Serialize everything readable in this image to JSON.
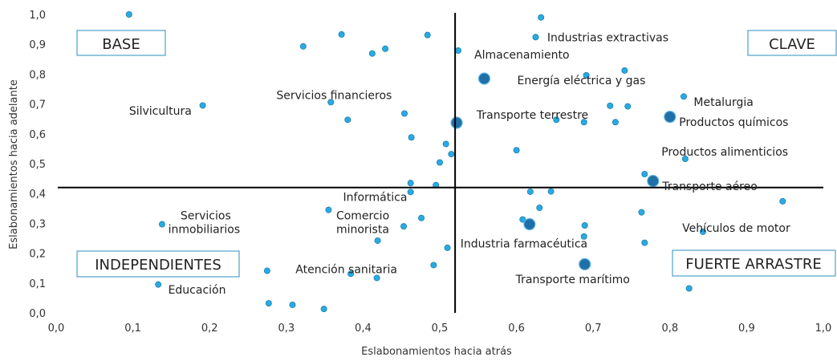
{
  "chart_data": {
    "type": "scatter",
    "xlabel": "Eslabonamientos hacia atrás",
    "ylabel": "Eslabonamientos hacia adelante",
    "xlim": [
      0.0,
      1.0
    ],
    "ylim": [
      0.0,
      1.0
    ],
    "x_ticks": [
      "0,0",
      "0,1",
      "0,2",
      "0,3",
      "0,4",
      "0,5",
      "0,6",
      "0,7",
      "0,8",
      "0,9",
      "1,0"
    ],
    "y_ticks": [
      "0,0",
      "0,1",
      "0,2",
      "0,3",
      "0,4",
      "0,5",
      "0,6",
      "0,7",
      "0,8",
      "0,9",
      "1,0"
    ],
    "grid": false,
    "reference_lines": {
      "x": 0.52,
      "y": 0.42
    },
    "quadrant_labels": [
      "BASE",
      "CLAVE",
      "INDEPENDIENTES",
      "FUERTE ARRASTRE"
    ],
    "colors": {
      "point": "#29abe2",
      "highlight": "#1f6fa8",
      "axis": "#000000",
      "box": "#2b8fc1"
    },
    "highlighted_points": [
      {
        "x": 0.558,
        "y": 0.785
      },
      {
        "x": 0.522,
        "y": 0.637
      },
      {
        "x": 0.8,
        "y": 0.657
      },
      {
        "x": 0.778,
        "y": 0.442
      },
      {
        "x": 0.617,
        "y": 0.297
      },
      {
        "x": 0.689,
        "y": 0.163
      }
    ],
    "points": [
      {
        "x": 0.095,
        "y": 1.0
      },
      {
        "x": 0.632,
        "y": 0.99
      },
      {
        "x": 0.372,
        "y": 0.933
      },
      {
        "x": 0.484,
        "y": 0.931
      },
      {
        "x": 0.625,
        "y": 0.924
      },
      {
        "x": 0.322,
        "y": 0.893
      },
      {
        "x": 0.429,
        "y": 0.885
      },
      {
        "x": 0.412,
        "y": 0.869
      },
      {
        "x": 0.524,
        "y": 0.879
      },
      {
        "x": 0.741,
        "y": 0.812
      },
      {
        "x": 0.691,
        "y": 0.796
      },
      {
        "x": 0.818,
        "y": 0.725
      },
      {
        "x": 0.191,
        "y": 0.695
      },
      {
        "x": 0.358,
        "y": 0.706
      },
      {
        "x": 0.722,
        "y": 0.694
      },
      {
        "x": 0.745,
        "y": 0.692
      },
      {
        "x": 0.454,
        "y": 0.668
      },
      {
        "x": 0.38,
        "y": 0.647
      },
      {
        "x": 0.652,
        "y": 0.647
      },
      {
        "x": 0.688,
        "y": 0.639
      },
      {
        "x": 0.729,
        "y": 0.639
      },
      {
        "x": 0.463,
        "y": 0.588
      },
      {
        "x": 0.508,
        "y": 0.566
      },
      {
        "x": 0.6,
        "y": 0.545
      },
      {
        "x": 0.515,
        "y": 0.532
      },
      {
        "x": 0.82,
        "y": 0.516
      },
      {
        "x": 0.5,
        "y": 0.504
      },
      {
        "x": 0.767,
        "y": 0.465
      },
      {
        "x": 0.462,
        "y": 0.435
      },
      {
        "x": 0.495,
        "y": 0.428
      },
      {
        "x": 0.462,
        "y": 0.405
      },
      {
        "x": 0.618,
        "y": 0.406
      },
      {
        "x": 0.645,
        "y": 0.407
      },
      {
        "x": 0.947,
        "y": 0.374
      },
      {
        "x": 0.63,
        "y": 0.352
      },
      {
        "x": 0.355,
        "y": 0.345
      },
      {
        "x": 0.763,
        "y": 0.337
      },
      {
        "x": 0.476,
        "y": 0.318
      },
      {
        "x": 0.608,
        "y": 0.313
      },
      {
        "x": 0.138,
        "y": 0.297
      },
      {
        "x": 0.689,
        "y": 0.293
      },
      {
        "x": 0.453,
        "y": 0.29
      },
      {
        "x": 0.843,
        "y": 0.272
      },
      {
        "x": 0.688,
        "y": 0.256
      },
      {
        "x": 0.419,
        "y": 0.242
      },
      {
        "x": 0.767,
        "y": 0.235
      },
      {
        "x": 0.51,
        "y": 0.218
      },
      {
        "x": 0.492,
        "y": 0.16
      },
      {
        "x": 0.275,
        "y": 0.141
      },
      {
        "x": 0.384,
        "y": 0.131
      },
      {
        "x": 0.418,
        "y": 0.117
      },
      {
        "x": 0.133,
        "y": 0.095
      },
      {
        "x": 0.825,
        "y": 0.082
      },
      {
        "x": 0.277,
        "y": 0.032
      },
      {
        "x": 0.308,
        "y": 0.027
      },
      {
        "x": 0.349,
        "y": 0.013
      }
    ],
    "annotations": [
      {
        "text": "Industrias extractivas",
        "x": 0.64,
        "y": 0.924,
        "anchor": "start"
      },
      {
        "text": "Almacenamiento",
        "x": 0.545,
        "y": 0.865,
        "anchor": "start"
      },
      {
        "text": "Energía eléctrica y gas",
        "x": 0.601,
        "y": 0.78,
        "anchor": "start"
      },
      {
        "text": "Metalurgia",
        "x": 0.831,
        "y": 0.707,
        "anchor": "start"
      },
      {
        "text": "Servicios financieros",
        "x": 0.287,
        "y": 0.73,
        "anchor": "start"
      },
      {
        "text": "Silvicultura",
        "x": 0.095,
        "y": 0.677,
        "anchor": "start"
      },
      {
        "text": "Transporte terrestre",
        "x": 0.548,
        "y": 0.664,
        "anchor": "start"
      },
      {
        "text": "Productos químicos",
        "x": 0.812,
        "y": 0.64,
        "anchor": "start"
      },
      {
        "text": "Productos alimenticios",
        "x": 0.789,
        "y": 0.54,
        "anchor": "start"
      },
      {
        "text": "Transporte aéreo",
        "x": 0.79,
        "y": 0.425,
        "anchor": "start"
      },
      {
        "text": "Informática",
        "x": 0.374,
        "y": 0.388,
        "anchor": "start"
      },
      {
        "text": "Servicios",
        "x": 0.162,
        "y": 0.327,
        "anchor": "start"
      },
      {
        "text": "inmobiliarios",
        "x": 0.146,
        "y": 0.281,
        "anchor": "start"
      },
      {
        "text": "Comercio",
        "x": 0.365,
        "y": 0.327,
        "anchor": "start"
      },
      {
        "text": "minorista",
        "x": 0.365,
        "y": 0.281,
        "anchor": "start"
      },
      {
        "text": "Vehículos de motor",
        "x": 0.816,
        "y": 0.285,
        "anchor": "start"
      },
      {
        "text": "Industria farmacéutica",
        "x": 0.527,
        "y": 0.232,
        "anchor": "start"
      },
      {
        "text": "Atención sanitaria",
        "x": 0.312,
        "y": 0.146,
        "anchor": "start"
      },
      {
        "text": "Transporte marítimo",
        "x": 0.599,
        "y": 0.113,
        "anchor": "start"
      },
      {
        "text": "Educación",
        "x": 0.146,
        "y": 0.078,
        "anchor": "start"
      }
    ]
  }
}
